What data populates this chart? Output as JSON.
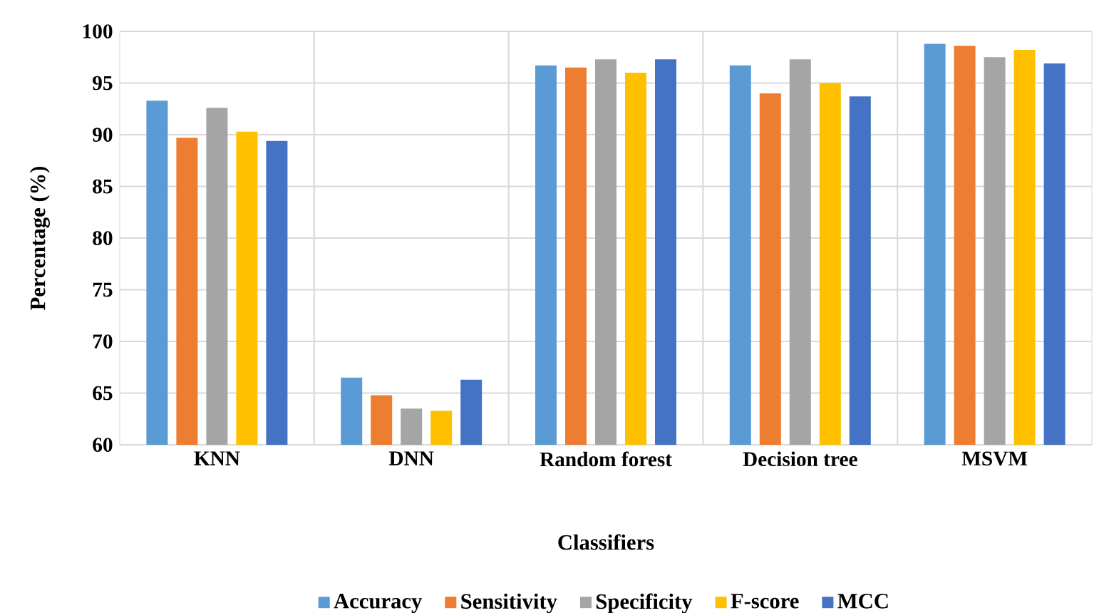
{
  "chart_data": {
    "type": "bar",
    "xlabel": "Classifiers",
    "ylabel": "Percentage (%)",
    "categories": [
      "KNN",
      "DNN",
      "Random forest",
      "Decision tree",
      "MSVM"
    ],
    "series": [
      {
        "name": "Accuracy",
        "color": "#5b9bd5",
        "values": [
          93.3,
          66.5,
          96.7,
          96.7,
          98.8
        ]
      },
      {
        "name": "Sensitivity",
        "color": "#ed7d31",
        "values": [
          89.7,
          64.8,
          96.5,
          94.0,
          98.6
        ]
      },
      {
        "name": "Specificity",
        "color": "#a5a5a5",
        "values": [
          92.6,
          63.5,
          97.3,
          97.3,
          97.5
        ]
      },
      {
        "name": "F-score",
        "color": "#ffc000",
        "values": [
          90.3,
          63.3,
          96.0,
          95.0,
          98.2
        ]
      },
      {
        "name": "MCC",
        "color": "#4472c4",
        "values": [
          89.4,
          66.3,
          97.3,
          93.7,
          96.9
        ]
      }
    ],
    "ylim": [
      60,
      100
    ],
    "yticks": [
      60,
      65,
      70,
      75,
      80,
      85,
      90,
      95,
      100
    ],
    "grid": true,
    "legend": "bottom"
  }
}
